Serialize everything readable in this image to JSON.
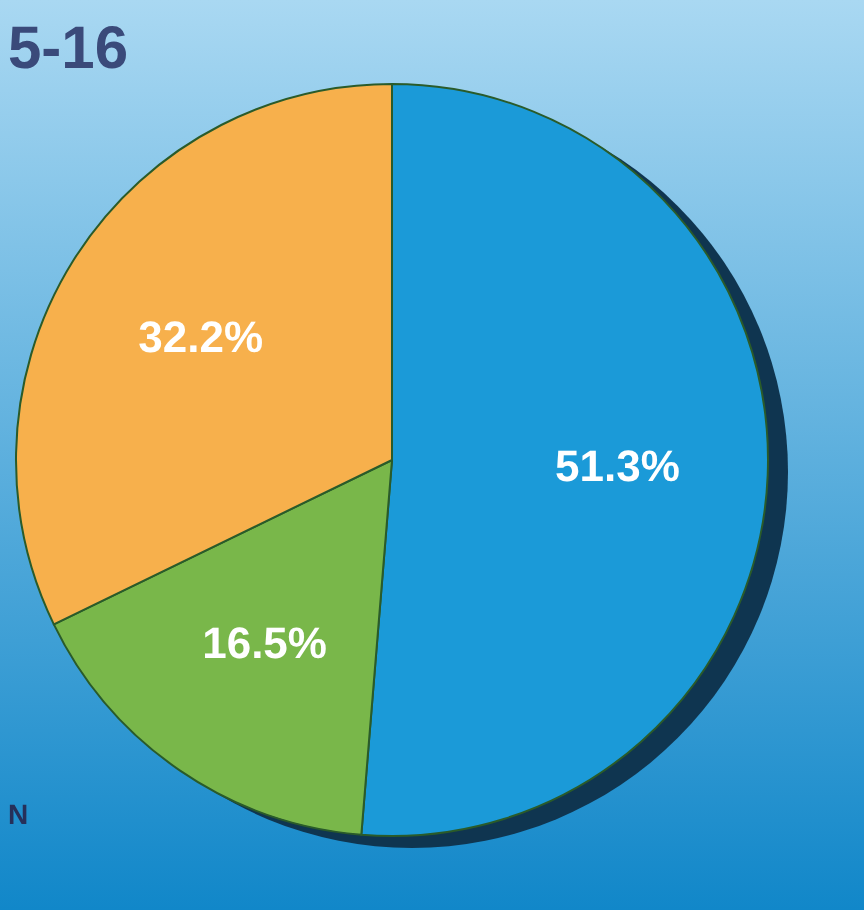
{
  "chart_data": {
    "type": "pie",
    "title": "5-16",
    "annotations": [
      "N"
    ],
    "categories": [
      null,
      null,
      null
    ],
    "values": [
      51.3,
      16.5,
      32.2
    ],
    "colors": [
      "#1b9ad8",
      "#79b74a",
      "#f7b04c"
    ],
    "value_labels": [
      "51.3%",
      "16.5%",
      "32.2%"
    ]
  }
}
